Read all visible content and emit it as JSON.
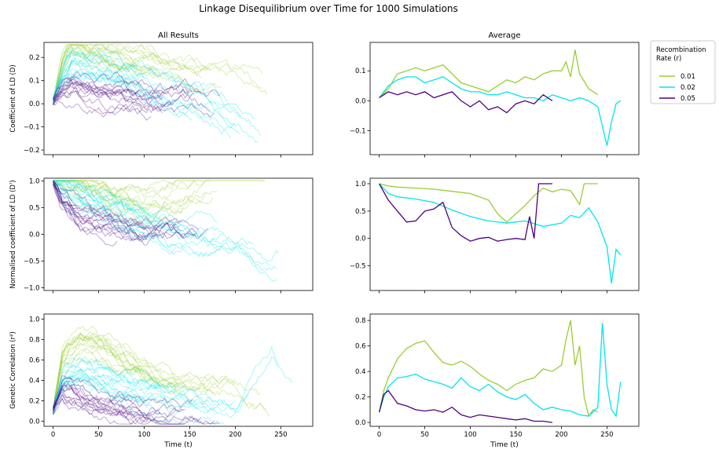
{
  "suptitle": "Linkage Disequilibrium over Time for 1000 Simulations",
  "legend": {
    "title_line1": "Recombination",
    "title_line2": "Rate (r)",
    "placement": "right, outside of the top-right panel",
    "entries": [
      {
        "label": "0.01",
        "color": "#9acd32"
      },
      {
        "label": "0.02",
        "color": "#00e5ee"
      },
      {
        "label": "0.05",
        "color": "#4b0082"
      }
    ]
  },
  "colors": {
    "r001": "#9acd32",
    "r002": "#00e5ee",
    "r005": "#4b0082"
  },
  "chart_data": [
    {
      "type": "line",
      "title": "All Results",
      "ylabel": "Coefficient of LD (D)",
      "xlim": [
        -10,
        285
      ],
      "ylim": [
        -0.22,
        0.265
      ],
      "yticks": [
        -0.2,
        -0.1,
        0.0,
        0.1,
        0.2
      ],
      "yticklabels": [
        "−0.2",
        "−0.1",
        "0.0",
        "0.1",
        "0.2"
      ],
      "grid": false,
      "style": "many faint simulation traces per recombination rate",
      "series": [
        {
          "name": "0.01",
          "x": [
            0,
            10,
            20,
            40,
            60,
            80,
            100,
            130,
            160,
            200,
            240
          ],
          "y": [
            0.01,
            0.17,
            0.24,
            0.22,
            0.2,
            0.18,
            0.16,
            0.14,
            0.12,
            0.1,
            0.05
          ]
        },
        {
          "name": "0.02",
          "x": [
            0,
            10,
            20,
            40,
            60,
            80,
            100,
            130,
            160,
            200,
            240,
            265
          ],
          "y": [
            0.01,
            0.12,
            0.18,
            0.17,
            0.15,
            0.12,
            0.1,
            0.05,
            0.02,
            -0.05,
            -0.2,
            0.0
          ]
        },
        {
          "name": "0.05",
          "x": [
            0,
            10,
            20,
            40,
            60,
            80,
            100,
            130,
            160,
            190
          ],
          "y": [
            0.01,
            0.05,
            0.06,
            0.04,
            0.03,
            0.02,
            0.0,
            0.0,
            0.0,
            0.0
          ]
        }
      ]
    },
    {
      "type": "line",
      "title": "Average",
      "ylabel": "",
      "xlim": [
        -10,
        285
      ],
      "ylim": [
        -0.18,
        0.195
      ],
      "yticks": [
        -0.1,
        0.0,
        0.1
      ],
      "yticklabels": [
        "−0.1",
        "0.0",
        "0.1"
      ],
      "grid": false,
      "series": [
        {
          "name": "0.01",
          "x": [
            0,
            10,
            20,
            30,
            40,
            50,
            60,
            70,
            80,
            90,
            100,
            110,
            120,
            130,
            140,
            150,
            160,
            170,
            180,
            190,
            200,
            205,
            210,
            215,
            220,
            230,
            240
          ],
          "y": [
            0.01,
            0.04,
            0.09,
            0.1,
            0.11,
            0.1,
            0.11,
            0.12,
            0.09,
            0.06,
            0.05,
            0.04,
            0.03,
            0.05,
            0.07,
            0.06,
            0.08,
            0.07,
            0.09,
            0.1,
            0.1,
            0.13,
            0.08,
            0.17,
            0.09,
            0.04,
            0.02
          ]
        },
        {
          "name": "0.02",
          "x": [
            0,
            10,
            20,
            30,
            40,
            50,
            60,
            70,
            80,
            90,
            100,
            110,
            120,
            130,
            140,
            150,
            160,
            170,
            180,
            190,
            200,
            210,
            220,
            230,
            240,
            250,
            255,
            260,
            265
          ],
          "y": [
            0.01,
            0.05,
            0.07,
            0.08,
            0.08,
            0.06,
            0.07,
            0.08,
            0.06,
            0.04,
            0.03,
            0.03,
            0.02,
            0.02,
            0.03,
            0.02,
            0.01,
            0.01,
            0.0,
            0.02,
            0.01,
            0.0,
            0.01,
            0.0,
            -0.02,
            -0.15,
            -0.07,
            -0.01,
            0.0
          ]
        },
        {
          "name": "0.05",
          "x": [
            0,
            10,
            20,
            30,
            40,
            50,
            60,
            70,
            80,
            90,
            100,
            110,
            120,
            130,
            140,
            150,
            160,
            170,
            180,
            190
          ],
          "y": [
            0.01,
            0.03,
            0.02,
            0.03,
            0.02,
            0.03,
            0.01,
            0.02,
            0.03,
            0.0,
            -0.02,
            0.0,
            -0.03,
            -0.02,
            -0.04,
            -0.01,
            0.0,
            -0.01,
            0.02,
            0.0
          ]
        }
      ]
    },
    {
      "type": "line",
      "title": "",
      "ylabel": "Normalised coefficient of LD (D')",
      "xlim": [
        -10,
        285
      ],
      "ylim": [
        -1.05,
        1.05
      ],
      "yticks": [
        -1.0,
        -0.5,
        0.0,
        0.5,
        1.0
      ],
      "yticklabels": [
        "−1.0",
        "−0.5",
        "0.0",
        "0.5",
        "1.0"
      ],
      "grid": false,
      "style": "many faint simulation traces per recombination rate",
      "series": [
        {
          "name": "0.01",
          "x": [
            0,
            10,
            30,
            60,
            100,
            150,
            200,
            240
          ],
          "y": [
            1.0,
            1.0,
            0.9,
            0.7,
            0.5,
            0.8,
            1.0,
            1.0
          ]
        },
        {
          "name": "0.02",
          "x": [
            0,
            10,
            30,
            60,
            100,
            150,
            200,
            240,
            265
          ],
          "y": [
            1.0,
            0.9,
            0.7,
            0.5,
            0.2,
            0.0,
            -0.1,
            -0.5,
            -0.3
          ]
        },
        {
          "name": "0.05",
          "x": [
            0,
            10,
            30,
            60,
            100,
            150,
            190
          ],
          "y": [
            1.0,
            0.6,
            0.3,
            0.2,
            0.0,
            0.0,
            0.0
          ]
        }
      ]
    },
    {
      "type": "line",
      "title": "",
      "ylabel": "",
      "xlim": [
        -10,
        285
      ],
      "ylim": [
        -0.95,
        1.1
      ],
      "yticks": [
        -0.5,
        0.0,
        0.5,
        1.0
      ],
      "yticklabels": [
        "−0.5",
        "0.0",
        "0.5",
        "1.0"
      ],
      "grid": false,
      "series": [
        {
          "name": "0.01",
          "x": [
            0,
            10,
            20,
            40,
            60,
            80,
            100,
            120,
            130,
            140,
            150,
            160,
            170,
            180,
            190,
            200,
            210,
            215,
            220,
            225,
            230,
            240
          ],
          "y": [
            1.0,
            0.96,
            0.94,
            0.92,
            0.9,
            0.86,
            0.82,
            0.7,
            0.45,
            0.3,
            0.45,
            0.6,
            0.78,
            0.92,
            0.85,
            0.9,
            0.87,
            0.75,
            0.62,
            1.0,
            1.0,
            1.0
          ]
        },
        {
          "name": "0.02",
          "x": [
            0,
            10,
            20,
            40,
            60,
            80,
            100,
            120,
            140,
            160,
            180,
            200,
            210,
            220,
            230,
            240,
            250,
            255,
            260,
            265
          ],
          "y": [
            1.0,
            0.82,
            0.76,
            0.72,
            0.66,
            0.52,
            0.4,
            0.32,
            0.28,
            0.32,
            0.22,
            0.28,
            0.42,
            0.38,
            0.56,
            0.3,
            -0.15,
            -0.82,
            -0.2,
            -0.3
          ]
        },
        {
          "name": "0.05",
          "x": [
            0,
            10,
            20,
            30,
            40,
            50,
            60,
            70,
            80,
            90,
            100,
            110,
            120,
            130,
            140,
            150,
            160,
            165,
            170,
            175,
            180,
            190
          ],
          "y": [
            1.0,
            0.7,
            0.5,
            0.3,
            0.32,
            0.5,
            0.54,
            0.66,
            0.2,
            0.05,
            -0.05,
            0.0,
            0.02,
            -0.05,
            -0.02,
            0.0,
            -0.02,
            0.4,
            0.0,
            1.0,
            1.0,
            1.0
          ]
        }
      ]
    },
    {
      "type": "line",
      "title": "",
      "ylabel": "Genetic Correlation (r²)",
      "xlabel": "Time (t)",
      "xlim": [
        -10,
        285
      ],
      "ylim": [
        -0.05,
        1.05
      ],
      "yticks": [
        0.0,
        0.2,
        0.4,
        0.6,
        0.8,
        1.0
      ],
      "yticklabels": [
        "0.0",
        "0.2",
        "0.4",
        "0.6",
        "0.8",
        "1.0"
      ],
      "xticks": [
        0,
        50,
        100,
        150,
        200,
        250
      ],
      "xticklabels": [
        "0",
        "50",
        "100",
        "150",
        "200",
        "250"
      ],
      "grid": false,
      "style": "many faint simulation traces per recombination rate",
      "series": [
        {
          "name": "0.01",
          "x": [
            0,
            10,
            30,
            60,
            100,
            150,
            200,
            240
          ],
          "y": [
            0.1,
            0.6,
            0.8,
            0.7,
            0.5,
            0.3,
            0.3,
            0.1
          ]
        },
        {
          "name": "0.02",
          "x": [
            0,
            10,
            30,
            60,
            100,
            150,
            200,
            240,
            265
          ],
          "y": [
            0.1,
            0.4,
            0.5,
            0.4,
            0.3,
            0.2,
            0.1,
            0.7,
            0.3
          ]
        },
        {
          "name": "0.05",
          "x": [
            0,
            10,
            30,
            60,
            100,
            150,
            190
          ],
          "y": [
            0.1,
            0.3,
            0.2,
            0.1,
            0.05,
            0.0,
            0.0
          ]
        }
      ]
    },
    {
      "type": "line",
      "title": "",
      "ylabel": "",
      "xlabel": "Time (t)",
      "xlim": [
        -10,
        285
      ],
      "ylim": [
        -0.03,
        0.85
      ],
      "yticks": [
        0.0,
        0.2,
        0.4,
        0.6,
        0.8
      ],
      "yticklabels": [
        "0.0",
        "0.2",
        "0.4",
        "0.6",
        "0.8"
      ],
      "xticks": [
        0,
        50,
        100,
        150,
        200,
        250
      ],
      "xticklabels": [
        "0",
        "50",
        "100",
        "150",
        "200",
        "250"
      ],
      "grid": false,
      "series": [
        {
          "name": "0.01",
          "x": [
            0,
            5,
            10,
            20,
            30,
            40,
            50,
            60,
            70,
            80,
            90,
            100,
            110,
            120,
            130,
            140,
            150,
            160,
            170,
            180,
            190,
            200,
            205,
            210,
            215,
            220,
            225,
            230,
            235,
            240
          ],
          "y": [
            0.08,
            0.25,
            0.35,
            0.5,
            0.58,
            0.62,
            0.64,
            0.55,
            0.47,
            0.45,
            0.48,
            0.44,
            0.38,
            0.33,
            0.3,
            0.25,
            0.3,
            0.33,
            0.35,
            0.42,
            0.4,
            0.45,
            0.65,
            0.8,
            0.45,
            0.6,
            0.2,
            0.05,
            0.1,
            0.08
          ]
        },
        {
          "name": "0.02",
          "x": [
            0,
            5,
            10,
            20,
            30,
            40,
            50,
            60,
            70,
            80,
            90,
            100,
            110,
            120,
            130,
            140,
            150,
            160,
            170,
            180,
            190,
            200,
            210,
            220,
            230,
            240,
            245,
            250,
            255,
            260,
            265
          ],
          "y": [
            0.08,
            0.2,
            0.28,
            0.35,
            0.36,
            0.38,
            0.34,
            0.32,
            0.3,
            0.27,
            0.35,
            0.28,
            0.25,
            0.3,
            0.24,
            0.2,
            0.18,
            0.22,
            0.15,
            0.1,
            0.12,
            0.1,
            0.09,
            0.06,
            0.05,
            0.12,
            0.78,
            0.3,
            0.1,
            0.05,
            0.32
          ]
        },
        {
          "name": "0.05",
          "x": [
            0,
            5,
            10,
            20,
            30,
            40,
            50,
            60,
            70,
            80,
            90,
            100,
            110,
            120,
            130,
            140,
            150,
            160,
            170,
            180,
            190
          ],
          "y": [
            0.08,
            0.22,
            0.25,
            0.15,
            0.13,
            0.1,
            0.09,
            0.1,
            0.08,
            0.12,
            0.06,
            0.04,
            0.06,
            0.05,
            0.04,
            0.03,
            0.02,
            0.03,
            0.01,
            0.01,
            0.0
          ]
        }
      ]
    }
  ]
}
